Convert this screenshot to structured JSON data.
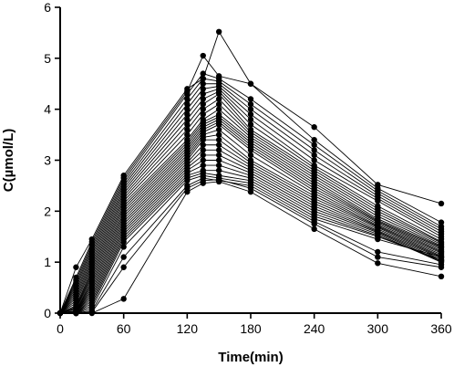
{
  "chart_data": {
    "type": "line",
    "xlabel": "Time(min)",
    "ylabel": "C(µmol/L)",
    "x": [
      0,
      15,
      30,
      60,
      120,
      135,
      150,
      180,
      240,
      300,
      360
    ],
    "xticks": [
      0,
      60,
      120,
      180,
      240,
      300,
      360
    ],
    "yticks": [
      0,
      1,
      2,
      3,
      4,
      5,
      6
    ],
    "xlim": [
      0,
      360
    ],
    "ylim": [
      0,
      6
    ],
    "grid": false,
    "legend": "none",
    "marker_color": "#000000",
    "line_color": "#000000",
    "series": [
      {
        "values": [
          0,
          0.9,
          1.45,
          2.7,
          4.4,
          4.6,
          5.52,
          4.5,
          3.65,
          2.52,
          2.15
        ]
      },
      {
        "values": [
          0,
          0.7,
          1.4,
          2.65,
          4.35,
          5.05,
          4.65,
          4.5,
          3.4,
          2.45,
          1.78
        ]
      },
      {
        "values": [
          0,
          0.65,
          1.35,
          2.6,
          4.3,
          4.7,
          4.6,
          4.2,
          3.3,
          2.4,
          1.7
        ]
      },
      {
        "values": [
          0,
          0.6,
          1.3,
          2.55,
          4.2,
          4.6,
          4.55,
          4.1,
          3.2,
          2.35,
          1.65
        ]
      },
      {
        "values": [
          0,
          0.55,
          1.25,
          2.5,
          4.1,
          4.5,
          4.5,
          4.0,
          3.1,
          2.3,
          1.6
        ]
      },
      {
        "values": [
          0,
          0.5,
          1.2,
          2.45,
          4.0,
          4.4,
          4.45,
          3.9,
          3.0,
          2.25,
          1.55
        ]
      },
      {
        "values": [
          0,
          0.45,
          1.15,
          2.4,
          3.9,
          4.3,
          4.4,
          3.8,
          2.9,
          2.2,
          1.5
        ]
      },
      {
        "values": [
          0,
          0.4,
          1.1,
          2.35,
          3.8,
          4.2,
          4.35,
          3.7,
          2.85,
          2.1,
          1.45
        ]
      },
      {
        "values": [
          0,
          0.35,
          1.05,
          2.3,
          3.7,
          4.1,
          4.3,
          3.6,
          2.8,
          2.05,
          1.4
        ]
      },
      {
        "values": [
          0,
          0.3,
          1.0,
          2.25,
          3.6,
          4.0,
          4.2,
          3.55,
          2.75,
          2.0,
          1.38
        ]
      },
      {
        "values": [
          0,
          0.25,
          0.95,
          2.2,
          3.5,
          3.9,
          4.1,
          3.5,
          2.7,
          1.95,
          1.35
        ]
      },
      {
        "values": [
          0,
          0.2,
          0.9,
          2.15,
          3.4,
          3.8,
          4.0,
          3.45,
          2.65,
          1.9,
          1.32
        ]
      },
      {
        "values": [
          0,
          0.15,
          0.85,
          2.1,
          3.35,
          3.75,
          3.9,
          3.4,
          2.6,
          1.85,
          1.3
        ]
      },
      {
        "values": [
          0,
          0.12,
          0.8,
          2.05,
          3.3,
          3.7,
          3.85,
          3.35,
          2.55,
          1.82,
          1.28
        ]
      },
      {
        "values": [
          0,
          0.1,
          0.75,
          2.0,
          3.25,
          3.65,
          3.8,
          3.3,
          2.5,
          1.8,
          1.25
        ]
      },
      {
        "values": [
          0,
          0.08,
          0.7,
          1.95,
          3.2,
          3.6,
          3.75,
          3.25,
          2.45,
          1.78,
          1.22
        ]
      },
      {
        "values": [
          0,
          0.05,
          0.65,
          1.9,
          3.15,
          3.55,
          3.7,
          3.2,
          2.4,
          1.75,
          1.2
        ]
      },
      {
        "values": [
          0,
          0.04,
          0.6,
          1.85,
          3.1,
          3.5,
          3.6,
          3.1,
          2.35,
          1.72,
          1.18
        ]
      },
      {
        "values": [
          0,
          0.03,
          0.55,
          1.8,
          3.05,
          3.45,
          3.5,
          3.0,
          2.3,
          1.7,
          1.15
        ]
      },
      {
        "values": [
          0,
          0.02,
          0.5,
          1.75,
          3.0,
          3.4,
          3.4,
          2.95,
          2.25,
          1.68,
          1.12
        ]
      },
      {
        "values": [
          0,
          0.02,
          0.45,
          1.7,
          2.95,
          3.3,
          3.3,
          2.9,
          2.2,
          1.65,
          1.1
        ]
      },
      {
        "values": [
          0,
          0.01,
          0.4,
          1.65,
          2.9,
          3.2,
          3.2,
          2.85,
          2.15,
          1.62,
          1.08
        ]
      },
      {
        "values": [
          0,
          0.01,
          0.35,
          1.6,
          2.85,
          3.1,
          3.1,
          2.8,
          2.1,
          1.6,
          1.05
        ]
      },
      {
        "values": [
          0,
          0.0,
          0.3,
          1.55,
          2.8,
          3.0,
          3.0,
          2.75,
          2.05,
          1.58,
          1.02
        ]
      },
      {
        "values": [
          0,
          0.0,
          0.25,
          1.5,
          2.75,
          2.9,
          2.9,
          2.7,
          2.0,
          1.55,
          1.0
        ]
      },
      {
        "values": [
          0,
          0.0,
          0.2,
          1.45,
          2.7,
          2.8,
          2.8,
          2.65,
          1.95,
          1.52,
          1.02
        ]
      },
      {
        "values": [
          0,
          0.0,
          0.15,
          1.4,
          2.65,
          2.75,
          2.7,
          2.6,
          1.9,
          1.5,
          1.05
        ]
      },
      {
        "values": [
          0,
          0.0,
          0.1,
          1.3,
          2.6,
          2.7,
          2.65,
          2.55,
          1.85,
          1.45,
          1.1
        ]
      },
      {
        "values": [
          0,
          0.0,
          0.05,
          1.1,
          2.5,
          2.65,
          2.6,
          2.5,
          1.8,
          1.2,
          0.95
        ]
      },
      {
        "values": [
          0,
          0.0,
          0.02,
          0.9,
          2.45,
          2.6,
          2.62,
          2.45,
          1.75,
          1.1,
          0.9
        ]
      },
      {
        "values": [
          0,
          0.0,
          0.0,
          0.28,
          2.38,
          2.55,
          2.58,
          2.38,
          1.65,
          0.98,
          0.72
        ]
      }
    ]
  }
}
